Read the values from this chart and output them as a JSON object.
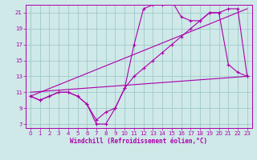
{
  "background_color": "#cfe8e8",
  "grid_color": "#a0c8c8",
  "line_color": "#aa00aa",
  "xlabel": "Windchill (Refroidissement éolien,°C)",
  "ylabel_ticks": [
    7,
    9,
    11,
    13,
    15,
    17,
    19,
    21
  ],
  "xlim": [
    -0.5,
    23.5
  ],
  "ylim": [
    6.5,
    22.0
  ],
  "xticks": [
    0,
    1,
    2,
    3,
    4,
    5,
    6,
    7,
    8,
    9,
    10,
    11,
    12,
    13,
    14,
    15,
    16,
    17,
    18,
    19,
    20,
    21,
    22,
    23
  ],
  "series": [
    {
      "x": [
        0,
        1,
        2,
        3,
        4,
        5,
        6,
        7,
        8,
        9,
        10,
        11,
        12,
        13,
        14,
        15,
        16,
        17,
        18,
        19,
        20,
        21,
        22,
        23
      ],
      "y": [
        10.5,
        10.0,
        10.5,
        11.0,
        11.0,
        10.5,
        9.5,
        7.0,
        7.0,
        9.0,
        11.5,
        13.0,
        14.0,
        15.0,
        16.0,
        17.0,
        18.0,
        19.0,
        20.0,
        21.0,
        21.0,
        21.5,
        21.5,
        13.0
      ],
      "marker": true
    },
    {
      "x": [
        0,
        1,
        2,
        3,
        4,
        5,
        6,
        7,
        8,
        9,
        10,
        11,
        12,
        13,
        14,
        15,
        16,
        17,
        18,
        19,
        20,
        21,
        22,
        23
      ],
      "y": [
        10.5,
        10.0,
        10.5,
        11.0,
        11.0,
        10.5,
        9.5,
        7.5,
        8.5,
        9.0,
        11.5,
        17.0,
        21.5,
        22.0,
        22.0,
        22.5,
        20.5,
        20.0,
        20.0,
        21.0,
        21.0,
        14.5,
        13.5,
        13.0
      ],
      "marker": true
    },
    {
      "x": [
        0,
        23
      ],
      "y": [
        10.5,
        21.5
      ],
      "marker": false
    },
    {
      "x": [
        0,
        23
      ],
      "y": [
        11.0,
        13.0
      ],
      "marker": false
    }
  ]
}
